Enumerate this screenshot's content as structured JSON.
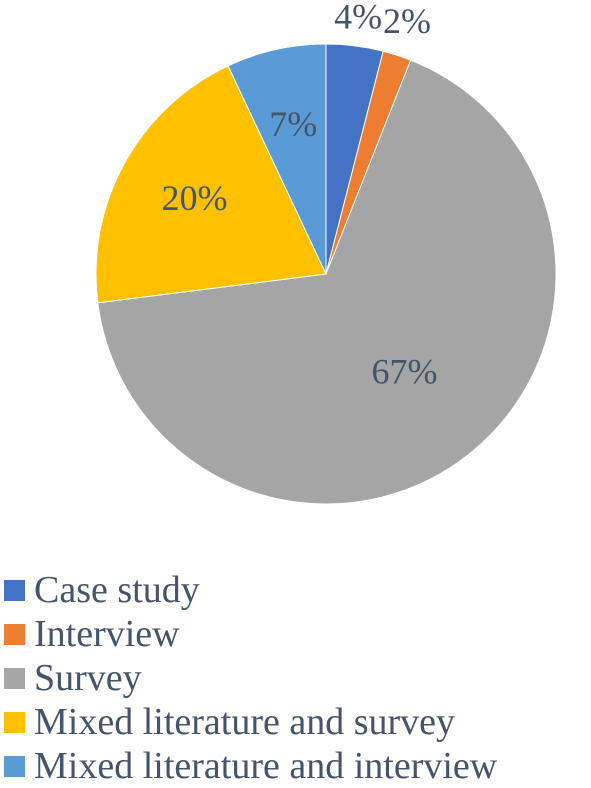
{
  "chart_data": {
    "type": "pie",
    "title": "",
    "categories": [
      "Case study",
      "Interview",
      "Survey",
      "Mixed literature and survey",
      "Mixed literature and interview"
    ],
    "values": [
      4,
      2,
      67,
      20,
      7
    ],
    "data_labels": [
      "4%",
      "2%",
      "67%",
      "20%",
      "7%"
    ],
    "colors": [
      "#4472c4",
      "#ed7d31",
      "#a5a5a5",
      "#ffc000",
      "#5b9bd5"
    ],
    "start_angle": "12 o'clock",
    "direction": "clockwise",
    "legend_position": "bottom-left"
  }
}
